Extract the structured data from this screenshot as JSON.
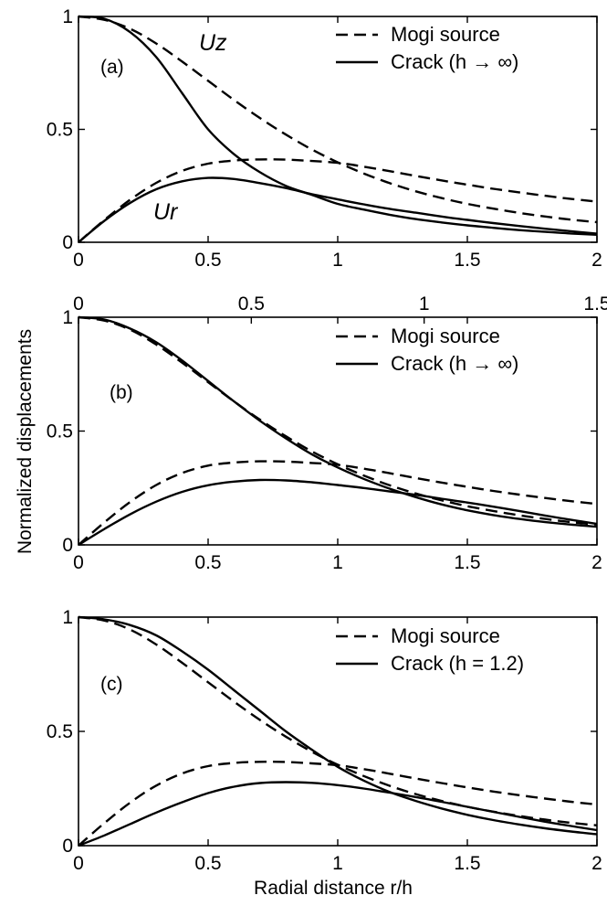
{
  "figure": {
    "ylabel": "Normalized displacements",
    "xlabel": "Radial distance r/h"
  },
  "chart_data": [
    {
      "type": "line",
      "panel": "(a)",
      "xlim": [
        0,
        2
      ],
      "ylim": [
        0,
        1
      ],
      "xticks": [
        "0",
        "0.5",
        "1",
        "1.5",
        "2"
      ],
      "yticks": [
        "0",
        "0.5",
        "1"
      ],
      "legend": {
        "placement": "top-right",
        "entries": [
          "Mogi source",
          "Crack (h → ∞)"
        ]
      },
      "annotations": [
        "Uz",
        "Ur"
      ],
      "x": [
        0,
        0.1,
        0.2,
        0.3,
        0.4,
        0.5,
        0.6,
        0.7,
        0.8,
        0.9,
        1.0,
        1.1,
        1.2,
        1.3,
        1.4,
        1.5,
        1.6,
        1.7,
        1.8,
        1.9,
        2.0
      ],
      "series": [
        {
          "legend": "Mogi source",
          "style": "dashed",
          "values": [
            1.0,
            0.985,
            0.945,
            0.88,
            0.8,
            0.715,
            0.63,
            0.55,
            0.477,
            0.411,
            0.354,
            0.305,
            0.262,
            0.226,
            0.196,
            0.17,
            0.149,
            0.13,
            0.114,
            0.1,
            0.089
          ]
        },
        {
          "legend": "Mogi source",
          "style": "dashed",
          "values": [
            0.0,
            0.099,
            0.189,
            0.263,
            0.316,
            0.348,
            0.362,
            0.367,
            0.366,
            0.36,
            0.352,
            0.335,
            0.315,
            0.294,
            0.274,
            0.255,
            0.237,
            0.221,
            0.206,
            0.192,
            0.18
          ]
        },
        {
          "legend": "Crack (h → ∞)",
          "style": "solid",
          "values": [
            1.0,
            0.99,
            0.93,
            0.82,
            0.66,
            0.5,
            0.39,
            0.31,
            0.25,
            0.21,
            0.17,
            0.145,
            0.122,
            0.103,
            0.088,
            0.075,
            0.064,
            0.054,
            0.046,
            0.039,
            0.033
          ]
        },
        {
          "legend": "Crack (h → ∞)",
          "style": "solid",
          "values": [
            0.0,
            0.095,
            0.175,
            0.235,
            0.27,
            0.285,
            0.28,
            0.262,
            0.24,
            0.213,
            0.19,
            0.168,
            0.148,
            0.131,
            0.114,
            0.099,
            0.085,
            0.072,
            0.06,
            0.049,
            0.038
          ]
        }
      ]
    },
    {
      "type": "line",
      "panel": "(b)",
      "xlim": [
        0,
        2
      ],
      "ylim": [
        0,
        1
      ],
      "xticks": [
        "0",
        "0.5",
        "1",
        "1.5",
        "2"
      ],
      "yticks": [
        "0",
        "0.5",
        "1"
      ],
      "top_axis": {
        "ticks": [
          "0",
          "0.5",
          "1",
          "1.5"
        ],
        "range": [
          0,
          1.5
        ]
      },
      "legend": {
        "placement": "top-right",
        "entries": [
          "Mogi source",
          "Crack (h → ∞)"
        ]
      },
      "x": [
        0,
        0.1,
        0.2,
        0.3,
        0.4,
        0.5,
        0.6,
        0.7,
        0.8,
        0.9,
        1.0,
        1.1,
        1.2,
        1.3,
        1.4,
        1.5,
        1.6,
        1.7,
        1.8,
        1.9,
        2.0
      ],
      "series": [
        {
          "legend": "Mogi source",
          "style": "dashed",
          "values": [
            1.0,
            0.985,
            0.945,
            0.88,
            0.8,
            0.715,
            0.63,
            0.55,
            0.477,
            0.411,
            0.354,
            0.305,
            0.262,
            0.226,
            0.196,
            0.17,
            0.149,
            0.13,
            0.114,
            0.1,
            0.089
          ]
        },
        {
          "legend": "Mogi source",
          "style": "dashed",
          "values": [
            0.0,
            0.099,
            0.189,
            0.263,
            0.316,
            0.348,
            0.362,
            0.367,
            0.366,
            0.36,
            0.352,
            0.335,
            0.315,
            0.294,
            0.274,
            0.255,
            0.237,
            0.221,
            0.206,
            0.192,
            0.18
          ]
        },
        {
          "legend": "Crack (h → ∞)",
          "style": "solid",
          "values": [
            1.0,
            0.99,
            0.95,
            0.89,
            0.81,
            0.72,
            0.63,
            0.545,
            0.468,
            0.398,
            0.34,
            0.29,
            0.247,
            0.21,
            0.178,
            0.152,
            0.131,
            0.114,
            0.1,
            0.089,
            0.08
          ]
        },
        {
          "legend": "Crack (h → ∞)",
          "style": "solid",
          "values": [
            0.0,
            0.07,
            0.135,
            0.19,
            0.233,
            0.262,
            0.278,
            0.285,
            0.283,
            0.275,
            0.263,
            0.25,
            0.235,
            0.22,
            0.203,
            0.186,
            0.168,
            0.149,
            0.129,
            0.11,
            0.092
          ]
        }
      ]
    },
    {
      "type": "line",
      "panel": "(c)",
      "xlim": [
        0,
        2
      ],
      "ylim": [
        0,
        1
      ],
      "xticks": [
        "0",
        "0.5",
        "1",
        "1.5",
        "2"
      ],
      "yticks": [
        "0",
        "0.5",
        "1"
      ],
      "legend": {
        "placement": "top-right",
        "entries": [
          "Mogi source",
          "Crack (h = 1.2)"
        ]
      },
      "x": [
        0,
        0.1,
        0.2,
        0.3,
        0.4,
        0.5,
        0.6,
        0.7,
        0.8,
        0.9,
        1.0,
        1.1,
        1.2,
        1.3,
        1.4,
        1.5,
        1.6,
        1.7,
        1.8,
        1.9,
        2.0
      ],
      "series": [
        {
          "legend": "Mogi source",
          "style": "dashed",
          "values": [
            1.0,
            0.985,
            0.945,
            0.88,
            0.8,
            0.715,
            0.63,
            0.55,
            0.477,
            0.411,
            0.354,
            0.305,
            0.262,
            0.226,
            0.196,
            0.17,
            0.149,
            0.13,
            0.114,
            0.1,
            0.089
          ]
        },
        {
          "legend": "Mogi source",
          "style": "dashed",
          "values": [
            0.0,
            0.099,
            0.189,
            0.263,
            0.316,
            0.348,
            0.362,
            0.367,
            0.366,
            0.36,
            0.352,
            0.335,
            0.315,
            0.294,
            0.274,
            0.255,
            0.237,
            0.221,
            0.206,
            0.192,
            0.18
          ]
        },
        {
          "legend": "Crack (h = 1.2)",
          "style": "solid",
          "values": [
            1.0,
            0.99,
            0.965,
            0.92,
            0.85,
            0.77,
            0.68,
            0.59,
            0.5,
            0.42,
            0.345,
            0.285,
            0.235,
            0.196,
            0.163,
            0.135,
            0.112,
            0.093,
            0.076,
            0.062,
            0.05
          ]
        },
        {
          "legend": "Crack (h = 1.2)",
          "style": "solid",
          "values": [
            0.0,
            0.045,
            0.095,
            0.145,
            0.19,
            0.23,
            0.258,
            0.274,
            0.278,
            0.275,
            0.265,
            0.25,
            0.232,
            0.213,
            0.192,
            0.17,
            0.148,
            0.126,
            0.105,
            0.086,
            0.068
          ]
        }
      ]
    }
  ]
}
